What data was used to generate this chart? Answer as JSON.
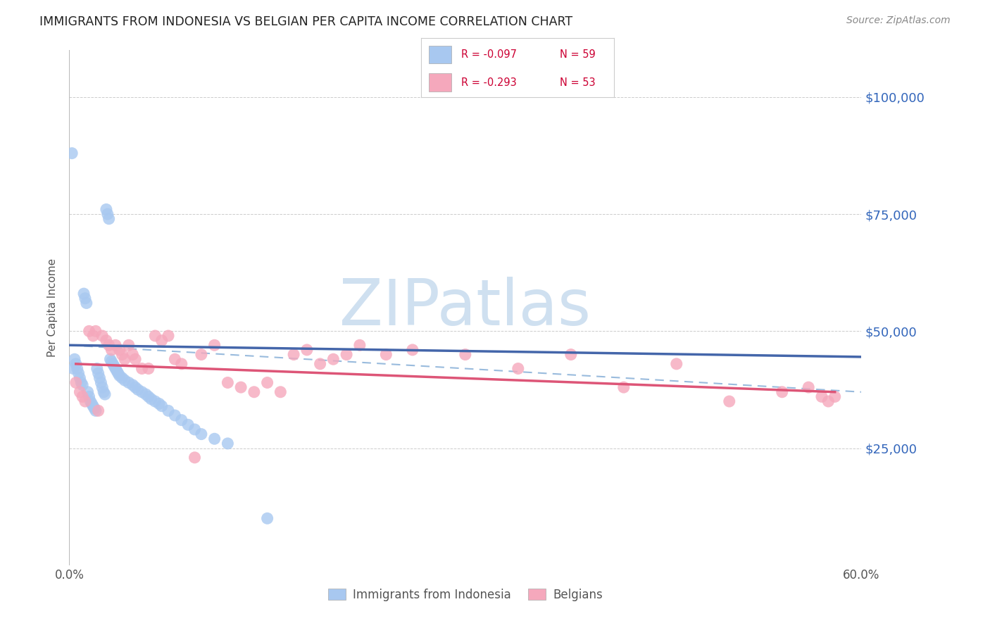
{
  "title": "IMMIGRANTS FROM INDONESIA VS BELGIAN PER CAPITA INCOME CORRELATION CHART",
  "source": "Source: ZipAtlas.com",
  "ylabel": "Per Capita Income",
  "xlim": [
    0.0,
    0.6
  ],
  "ylim": [
    0,
    110000
  ],
  "yticks": [
    0,
    25000,
    50000,
    75000,
    100000
  ],
  "ytick_labels": [
    "",
    "$25,000",
    "$50,000",
    "$75,000",
    "$100,000"
  ],
  "background_color": "#ffffff",
  "grid_color": "#cccccc",
  "blue_color": "#a8c8f0",
  "pink_color": "#f5a8bc",
  "blue_line_color": "#4466aa",
  "pink_line_color": "#dd5577",
  "blue_dash_color": "#99bbdd",
  "right_axis_color": "#3366bb",
  "legend_R1": "R = -0.097",
  "legend_N1": "N = 59",
  "legend_R2": "R = -0.293",
  "legend_N2": "N = 53",
  "label1": "Immigrants from Indonesia",
  "label2": "Belgians",
  "blue_x": [
    0.002,
    0.003,
    0.004,
    0.005,
    0.006,
    0.007,
    0.008,
    0.009,
    0.01,
    0.011,
    0.012,
    0.013,
    0.014,
    0.015,
    0.016,
    0.017,
    0.018,
    0.019,
    0.02,
    0.021,
    0.022,
    0.023,
    0.024,
    0.025,
    0.026,
    0.027,
    0.028,
    0.029,
    0.03,
    0.031,
    0.032,
    0.033,
    0.034,
    0.035,
    0.036,
    0.037,
    0.038,
    0.04,
    0.042,
    0.045,
    0.048,
    0.05,
    0.052,
    0.055,
    0.058,
    0.06,
    0.062,
    0.065,
    0.068,
    0.07,
    0.075,
    0.08,
    0.085,
    0.09,
    0.095,
    0.1,
    0.11,
    0.12,
    0.15
  ],
  "blue_y": [
    88000,
    42000,
    44000,
    43000,
    42000,
    41000,
    40000,
    39000,
    38500,
    58000,
    57000,
    56000,
    37000,
    36000,
    35000,
    34500,
    34000,
    33500,
    33000,
    42000,
    41000,
    40000,
    39000,
    38000,
    37000,
    36500,
    76000,
    75000,
    74000,
    44000,
    43500,
    43000,
    42500,
    42000,
    41500,
    41000,
    40500,
    40000,
    39500,
    39000,
    38500,
    38000,
    37500,
    37000,
    36500,
    36000,
    35500,
    35000,
    34500,
    34000,
    33000,
    32000,
    31000,
    30000,
    29000,
    28000,
    27000,
    26000,
    10000
  ],
  "pink_x": [
    0.005,
    0.008,
    0.01,
    0.012,
    0.015,
    0.018,
    0.02,
    0.022,
    0.025,
    0.028,
    0.03,
    0.032,
    0.035,
    0.038,
    0.04,
    0.042,
    0.045,
    0.048,
    0.05,
    0.055,
    0.06,
    0.065,
    0.07,
    0.075,
    0.08,
    0.085,
    0.095,
    0.1,
    0.11,
    0.12,
    0.13,
    0.14,
    0.15,
    0.16,
    0.17,
    0.18,
    0.19,
    0.2,
    0.21,
    0.22,
    0.24,
    0.26,
    0.3,
    0.34,
    0.38,
    0.42,
    0.46,
    0.5,
    0.54,
    0.56,
    0.57,
    0.575,
    0.58
  ],
  "pink_y": [
    39000,
    37000,
    36000,
    35000,
    50000,
    49000,
    50000,
    33000,
    49000,
    48000,
    47000,
    46000,
    47000,
    46000,
    45000,
    44000,
    47000,
    45000,
    44000,
    42000,
    42000,
    49000,
    48000,
    49000,
    44000,
    43000,
    23000,
    45000,
    47000,
    39000,
    38000,
    37000,
    39000,
    37000,
    45000,
    46000,
    43000,
    44000,
    45000,
    47000,
    45000,
    46000,
    45000,
    42000,
    45000,
    38000,
    43000,
    35000,
    37000,
    38000,
    36000,
    35000,
    36000
  ],
  "watermark": "ZIPatlas",
  "watermark_color": "#cfe0f0",
  "watermark_fontsize": 65
}
